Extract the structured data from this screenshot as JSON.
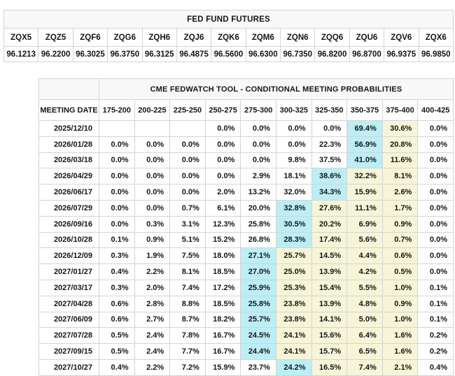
{
  "futures": {
    "title": "FED FUND FUTURES",
    "symbols": [
      "ZQX5",
      "ZQZ5",
      "ZQF6",
      "ZQG6",
      "ZQH6",
      "ZQJ6",
      "ZQK6",
      "ZQM6",
      "ZQN6",
      "ZQQ6",
      "ZQU6",
      "ZQV6",
      "ZQX6"
    ],
    "prices": [
      "96.1213",
      "96.2200",
      "96.3025",
      "96.3750",
      "96.3125",
      "96.4875",
      "96.5600",
      "96.6300",
      "96.7350",
      "96.8200",
      "96.8700",
      "96.9375",
      "96.9850"
    ]
  },
  "fedwatch": {
    "title": "CME FEDWATCH TOOL - CONDITIONAL MEETING PROBABILITIES",
    "date_header": "MEETING DATE",
    "rate_columns": [
      "175-200",
      "200-225",
      "225-250",
      "250-275",
      "275-300",
      "300-325",
      "325-350",
      "350-375",
      "375-400",
      "400-425"
    ],
    "highlight_colors": {
      "blue": "#bceef6",
      "yellow": "#f6f5d8"
    },
    "rows": [
      {
        "date": "2025/12/10",
        "cells": [
          {
            "v": ""
          },
          {
            "v": ""
          },
          {
            "v": ""
          },
          {
            "v": "0.0%"
          },
          {
            "v": "0.0%"
          },
          {
            "v": "0.0%"
          },
          {
            "v": "0.0%"
          },
          {
            "v": "69.4%",
            "h": "blue"
          },
          {
            "v": "30.6%",
            "h": "yellow"
          },
          {
            "v": "0.0%"
          }
        ]
      },
      {
        "date": "2026/01/28",
        "cells": [
          {
            "v": "0.0%"
          },
          {
            "v": "0.0%"
          },
          {
            "v": "0.0%"
          },
          {
            "v": "0.0%"
          },
          {
            "v": "0.0%"
          },
          {
            "v": "0.0%"
          },
          {
            "v": "22.3%"
          },
          {
            "v": "56.9%",
            "h": "blue"
          },
          {
            "v": "20.8%",
            "h": "yellow"
          },
          {
            "v": "0.0%"
          }
        ]
      },
      {
        "date": "2026/03/18",
        "cells": [
          {
            "v": "0.0%"
          },
          {
            "v": "0.0%"
          },
          {
            "v": "0.0%"
          },
          {
            "v": "0.0%"
          },
          {
            "v": "0.0%"
          },
          {
            "v": "9.8%"
          },
          {
            "v": "37.5%"
          },
          {
            "v": "41.0%",
            "h": "blue"
          },
          {
            "v": "11.6%",
            "h": "yellow"
          },
          {
            "v": "0.0%"
          }
        ]
      },
      {
        "date": "2026/04/29",
        "cells": [
          {
            "v": "0.0%"
          },
          {
            "v": "0.0%"
          },
          {
            "v": "0.0%"
          },
          {
            "v": "0.0%"
          },
          {
            "v": "2.9%"
          },
          {
            "v": "18.1%"
          },
          {
            "v": "38.6%",
            "h": "blue"
          },
          {
            "v": "32.2%",
            "h": "yellow"
          },
          {
            "v": "8.1%",
            "h": "yellow"
          },
          {
            "v": "0.0%"
          }
        ]
      },
      {
        "date": "2026/06/17",
        "cells": [
          {
            "v": "0.0%"
          },
          {
            "v": "0.0%"
          },
          {
            "v": "0.0%"
          },
          {
            "v": "2.0%"
          },
          {
            "v": "13.2%"
          },
          {
            "v": "32.0%"
          },
          {
            "v": "34.3%",
            "h": "blue"
          },
          {
            "v": "15.9%",
            "h": "yellow"
          },
          {
            "v": "2.6%",
            "h": "yellow"
          },
          {
            "v": "0.0%"
          }
        ]
      },
      {
        "date": "2026/07/29",
        "cells": [
          {
            "v": "0.0%"
          },
          {
            "v": "0.0%"
          },
          {
            "v": "0.7%"
          },
          {
            "v": "6.1%"
          },
          {
            "v": "20.0%"
          },
          {
            "v": "32.8%",
            "h": "blue"
          },
          {
            "v": "27.6%",
            "h": "yellow"
          },
          {
            "v": "11.1%",
            "h": "yellow"
          },
          {
            "v": "1.7%",
            "h": "yellow"
          },
          {
            "v": "0.0%"
          }
        ]
      },
      {
        "date": "2026/09/16",
        "cells": [
          {
            "v": "0.0%"
          },
          {
            "v": "0.3%"
          },
          {
            "v": "3.1%"
          },
          {
            "v": "12.3%"
          },
          {
            "v": "25.8%"
          },
          {
            "v": "30.5%",
            "h": "blue"
          },
          {
            "v": "20.2%",
            "h": "yellow"
          },
          {
            "v": "6.9%",
            "h": "yellow"
          },
          {
            "v": "0.9%",
            "h": "yellow"
          },
          {
            "v": "0.0%"
          }
        ]
      },
      {
        "date": "2026/10/28",
        "cells": [
          {
            "v": "0.1%"
          },
          {
            "v": "0.9%"
          },
          {
            "v": "5.1%"
          },
          {
            "v": "15.2%"
          },
          {
            "v": "26.8%"
          },
          {
            "v": "28.3%",
            "h": "blue"
          },
          {
            "v": "17.4%",
            "h": "yellow"
          },
          {
            "v": "5.6%",
            "h": "yellow"
          },
          {
            "v": "0.7%",
            "h": "yellow"
          },
          {
            "v": "0.0%"
          }
        ]
      },
      {
        "date": "2026/12/09",
        "cells": [
          {
            "v": "0.3%"
          },
          {
            "v": "1.9%"
          },
          {
            "v": "7.5%"
          },
          {
            "v": "18.0%"
          },
          {
            "v": "27.1%",
            "h": "blue"
          },
          {
            "v": "25.7%",
            "h": "yellow"
          },
          {
            "v": "14.5%",
            "h": "yellow"
          },
          {
            "v": "4.4%",
            "h": "yellow"
          },
          {
            "v": "0.6%",
            "h": "yellow"
          },
          {
            "v": "0.0%"
          }
        ]
      },
      {
        "date": "2027/01/27",
        "cells": [
          {
            "v": "0.4%"
          },
          {
            "v": "2.2%"
          },
          {
            "v": "8.1%"
          },
          {
            "v": "18.5%"
          },
          {
            "v": "27.0%",
            "h": "blue"
          },
          {
            "v": "25.0%",
            "h": "yellow"
          },
          {
            "v": "13.9%",
            "h": "yellow"
          },
          {
            "v": "4.2%",
            "h": "yellow"
          },
          {
            "v": "0.5%",
            "h": "yellow"
          },
          {
            "v": "0.0%"
          }
        ]
      },
      {
        "date": "2027/03/17",
        "cells": [
          {
            "v": "0.3%"
          },
          {
            "v": "2.0%"
          },
          {
            "v": "7.4%"
          },
          {
            "v": "17.2%"
          },
          {
            "v": "25.9%",
            "h": "blue"
          },
          {
            "v": "25.3%",
            "h": "yellow"
          },
          {
            "v": "15.4%",
            "h": "yellow"
          },
          {
            "v": "5.5%",
            "h": "yellow"
          },
          {
            "v": "1.0%",
            "h": "yellow"
          },
          {
            "v": "0.1%"
          }
        ]
      },
      {
        "date": "2027/04/28",
        "cells": [
          {
            "v": "0.6%"
          },
          {
            "v": "2.8%"
          },
          {
            "v": "8.8%"
          },
          {
            "v": "18.5%"
          },
          {
            "v": "25.8%",
            "h": "blue"
          },
          {
            "v": "23.8%",
            "h": "yellow"
          },
          {
            "v": "13.9%",
            "h": "yellow"
          },
          {
            "v": "4.8%",
            "h": "yellow"
          },
          {
            "v": "0.9%",
            "h": "yellow"
          },
          {
            "v": "0.1%"
          }
        ]
      },
      {
        "date": "2027/06/09",
        "cells": [
          {
            "v": "0.6%"
          },
          {
            "v": "2.7%"
          },
          {
            "v": "8.7%"
          },
          {
            "v": "18.2%"
          },
          {
            "v": "25.7%",
            "h": "blue"
          },
          {
            "v": "23.8%",
            "h": "yellow"
          },
          {
            "v": "14.1%",
            "h": "yellow"
          },
          {
            "v": "5.0%",
            "h": "yellow"
          },
          {
            "v": "1.0%",
            "h": "yellow"
          },
          {
            "v": "0.1%"
          }
        ]
      },
      {
        "date": "2027/07/28",
        "cells": [
          {
            "v": "0.5%"
          },
          {
            "v": "2.4%"
          },
          {
            "v": "7.8%"
          },
          {
            "v": "16.7%"
          },
          {
            "v": "24.5%",
            "h": "blue"
          },
          {
            "v": "24.1%",
            "h": "yellow"
          },
          {
            "v": "15.6%",
            "h": "yellow"
          },
          {
            "v": "6.4%",
            "h": "yellow"
          },
          {
            "v": "1.6%",
            "h": "yellow"
          },
          {
            "v": "0.2%"
          }
        ]
      },
      {
        "date": "2027/09/15",
        "cells": [
          {
            "v": "0.5%"
          },
          {
            "v": "2.4%"
          },
          {
            "v": "7.7%"
          },
          {
            "v": "16.7%"
          },
          {
            "v": "24.4%",
            "h": "blue"
          },
          {
            "v": "24.1%",
            "h": "yellow"
          },
          {
            "v": "15.7%",
            "h": "yellow"
          },
          {
            "v": "6.5%",
            "h": "yellow"
          },
          {
            "v": "1.6%",
            "h": "yellow"
          },
          {
            "v": "0.2%"
          }
        ]
      },
      {
        "date": "2027/10/27",
        "cells": [
          {
            "v": "0.4%"
          },
          {
            "v": "2.2%"
          },
          {
            "v": "7.2%"
          },
          {
            "v": "15.9%"
          },
          {
            "v": "23.7%"
          },
          {
            "v": "24.2%",
            "h": "blue"
          },
          {
            "v": "16.5%",
            "h": "yellow"
          },
          {
            "v": "7.4%",
            "h": "yellow"
          },
          {
            "v": "2.1%",
            "h": "yellow"
          },
          {
            "v": "0.4%"
          }
        ]
      }
    ]
  }
}
